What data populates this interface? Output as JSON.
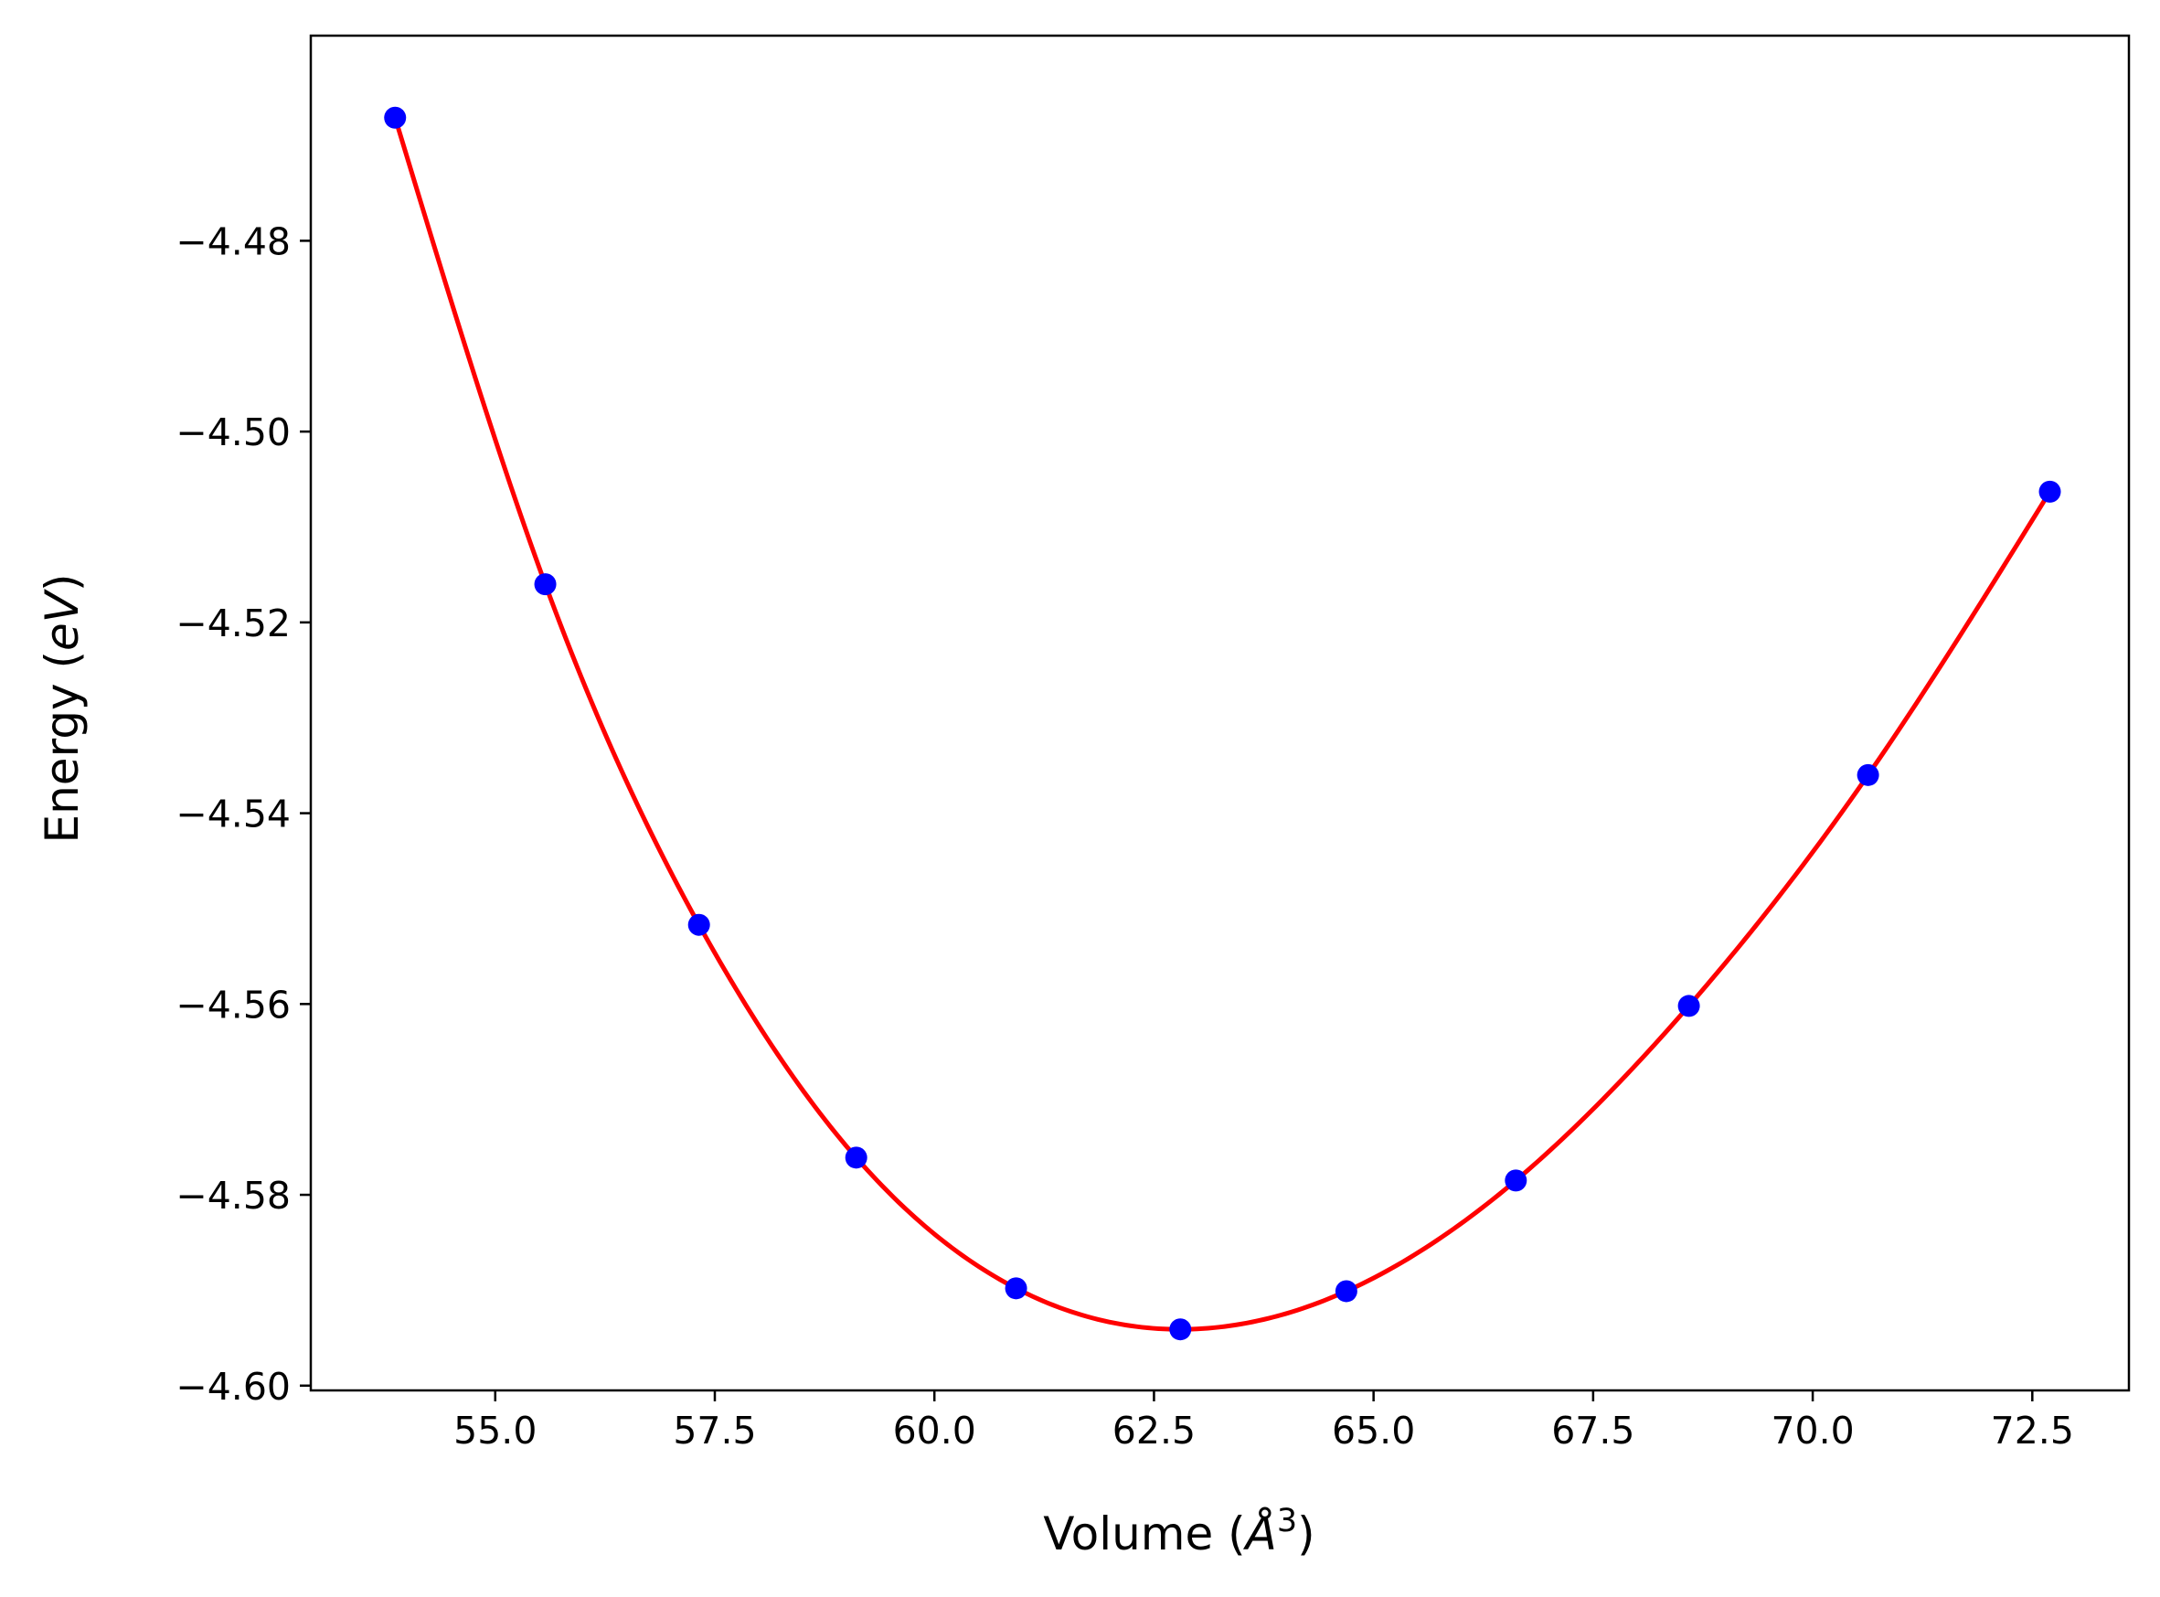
{
  "chart_data": {
    "type": "line",
    "title": "",
    "xlabel": {
      "prefix": "Volume (",
      "var": "Å",
      "sup": "3",
      "suffix": ")"
    },
    "ylabel": {
      "prefix": "Energy (",
      "var": "eV",
      "suffix": ")"
    },
    "xlim": [
      52.9,
      73.6
    ],
    "ylim": [
      -4.6005,
      -4.4585
    ],
    "xticks": [
      55.0,
      57.5,
      60.0,
      62.5,
      65.0,
      67.5,
      70.0,
      72.5
    ],
    "xtick_labels": [
      "55.0",
      "57.5",
      "60.0",
      "62.5",
      "65.0",
      "67.5",
      "70.0",
      "72.5"
    ],
    "yticks": [
      -4.48,
      -4.5,
      -4.52,
      -4.54,
      -4.56,
      -4.58,
      -4.6
    ],
    "ytick_labels": [
      "−4.48",
      "−4.50",
      "−4.52",
      "−4.54",
      "−4.56",
      "−4.58",
      "−4.60"
    ],
    "grid": false,
    "legend": "none",
    "series": [
      {
        "kind": "scatter",
        "color": "#0000ff",
        "x": [
          53.86,
          55.57,
          57.32,
          59.11,
          60.93,
          62.8,
          64.69,
          66.62,
          68.59,
          70.63,
          72.7
        ],
        "y": [
          -4.4671,
          -4.516,
          -4.5517,
          -4.5761,
          -4.5898,
          -4.5941,
          -4.5901,
          -4.5785,
          -4.5602,
          -4.536,
          -4.5063
        ]
      },
      {
        "kind": "fit-line",
        "color": "#ff0000",
        "x": [
          53.86,
          55.57,
          57.32,
          59.11,
          60.93,
          62.8,
          64.69,
          66.62,
          68.59,
          70.63,
          72.7
        ],
        "y": [
          -4.4671,
          -4.516,
          -4.5517,
          -4.5761,
          -4.5898,
          -4.5941,
          -4.5901,
          -4.5785,
          -4.5602,
          -4.536,
          -4.5063
        ]
      }
    ]
  }
}
